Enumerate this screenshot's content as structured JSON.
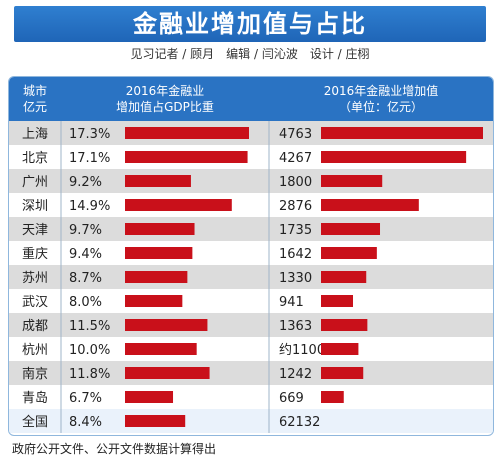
{
  "header": {
    "title": "金融业增加值与占比",
    "credits": "见习记者 / 顾月　编辑 / 闫沁波　设计 / 庄栩"
  },
  "table": {
    "col_city": [
      "城市",
      "亿元"
    ],
    "col_pct": [
      "2016年金融业",
      "增加值占GDP比重"
    ],
    "col_val": [
      "2016年金融业增加值",
      "（单位：亿元）"
    ]
  },
  "colors": {
    "header_blue": "#2a73c3",
    "bar_red": "#c9101a",
    "row_gray": "#dcdcdc",
    "row_white": "#ffffff",
    "row_total": "#eaf2fb",
    "divider": "#9fb4c8"
  },
  "chart_data": {
    "type": "bar",
    "categories": [
      "上海",
      "北京",
      "广州",
      "深圳",
      "天津",
      "重庆",
      "苏州",
      "武汉",
      "成都",
      "杭州",
      "南京",
      "青岛",
      "全国"
    ],
    "series": [
      {
        "name": "2016年金融业增加值占GDP比重",
        "values": [
          17.3,
          17.1,
          9.2,
          14.9,
          9.7,
          9.4,
          8.7,
          8.0,
          11.5,
          10.0,
          11.8,
          6.7,
          8.4
        ],
        "labels": [
          "17.3%",
          "17.1%",
          "9.2%",
          "14.9%",
          "9.7%",
          "9.4%",
          "8.7%",
          "8.0%",
          "11.5%",
          "10.0%",
          "11.8%",
          "6.7%",
          "8.4%"
        ]
      },
      {
        "name": "2016年金融业增加值（单位：亿元）",
        "values": [
          4763,
          4267,
          1800,
          2876,
          1735,
          1642,
          1330,
          941,
          1363,
          1100,
          1242,
          669,
          62132
        ],
        "labels": [
          "4763",
          "4267",
          "1800",
          "2876",
          "1735",
          "1642",
          "1330",
          "941",
          "1363",
          "约1100",
          "1242",
          "669",
          "62132"
        ],
        "no_bar": [
          12
        ]
      }
    ]
  },
  "source": "政府公开文件、公开文件数据计算得出"
}
